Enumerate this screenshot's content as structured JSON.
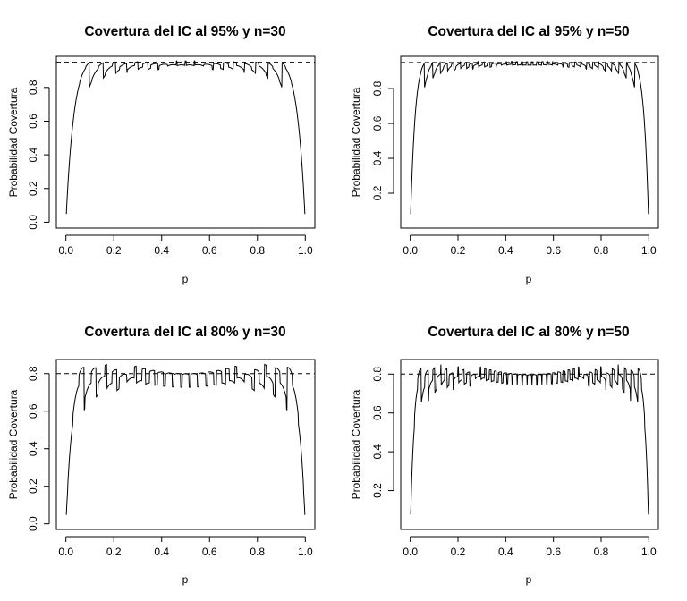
{
  "chart_data": [
    {
      "type": "line",
      "title": "Covertura del IC al 95% y n=30",
      "xlabel": "p",
      "ylabel": "Probabilidad Covertura",
      "n": 30,
      "confidence": 0.95,
      "reference_line": {
        "y": 0.95,
        "style": "dashed"
      },
      "xlim": [
        0,
        1
      ],
      "ylim": [
        0,
        0.95
      ],
      "xticks": [
        "0.0",
        "0.2",
        "0.4",
        "0.6",
        "0.8",
        "1.0"
      ],
      "xtick_values": [
        0,
        0.2,
        0.4,
        0.6,
        0.8,
        1.0
      ],
      "yticks": [
        "0.0",
        "0.2",
        "0.4",
        "0.6",
        "0.8"
      ],
      "ytick_values": [
        0,
        0.2,
        0.4,
        0.6,
        0.8
      ],
      "series": [
        {
          "x": [],
          "y": []
        }
      ]
    },
    {
      "type": "line",
      "title": "Covertura del IC al 95% y n=50",
      "xlabel": "p",
      "ylabel": "Probabilidad Covertura",
      "n": 50,
      "confidence": 0.95,
      "reference_line": {
        "y": 0.95,
        "style": "dashed"
      },
      "xlim": [
        0,
        1
      ],
      "ylim": [
        0,
        0.95
      ],
      "xticks": [
        "0.0",
        "0.2",
        "0.4",
        "0.6",
        "0.8",
        "1.0"
      ],
      "xtick_values": [
        0,
        0.2,
        0.4,
        0.6,
        0.8,
        1.0
      ],
      "yticks": [
        "0.2",
        "0.4",
        "0.6",
        "0.8"
      ],
      "ytick_values": [
        0.2,
        0.4,
        0.6,
        0.8
      ],
      "series": [
        {
          "x": [],
          "y": []
        }
      ]
    },
    {
      "type": "line",
      "title": "Covertura del IC al 80% y n=30",
      "xlabel": "p",
      "ylabel": "Probabilidad Covertura",
      "n": 30,
      "confidence": 0.8,
      "reference_line": {
        "y": 0.8,
        "style": "dashed"
      },
      "xlim": [
        0,
        1
      ],
      "ylim": [
        0,
        0.85
      ],
      "xticks": [
        "0.0",
        "0.2",
        "0.4",
        "0.6",
        "0.8",
        "1.0"
      ],
      "xtick_values": [
        0,
        0.2,
        0.4,
        0.6,
        0.8,
        1.0
      ],
      "yticks": [
        "0.0",
        "0.2",
        "0.4",
        "0.6",
        "0.8"
      ],
      "ytick_values": [
        0,
        0.2,
        0.4,
        0.6,
        0.8
      ],
      "series": [
        {
          "x": [],
          "y": []
        }
      ]
    },
    {
      "type": "line",
      "title": "Covertura del IC al 80% y n=50",
      "xlabel": "p",
      "ylabel": "Probabilidad Covertura",
      "n": 50,
      "confidence": 0.8,
      "reference_line": {
        "y": 0.8,
        "style": "dashed"
      },
      "xlim": [
        0,
        1
      ],
      "ylim": [
        0,
        0.85
      ],
      "xticks": [
        "0.0",
        "0.2",
        "0.4",
        "0.6",
        "0.8",
        "1.0"
      ],
      "xtick_values": [
        0,
        0.2,
        0.4,
        0.6,
        0.8,
        1.0
      ],
      "yticks": [
        "0.2",
        "0.4",
        "0.6",
        "0.8"
      ],
      "ytick_values": [
        0.2,
        0.4,
        0.6,
        0.8
      ],
      "series": [
        {
          "x": [],
          "y": []
        }
      ]
    }
  ]
}
